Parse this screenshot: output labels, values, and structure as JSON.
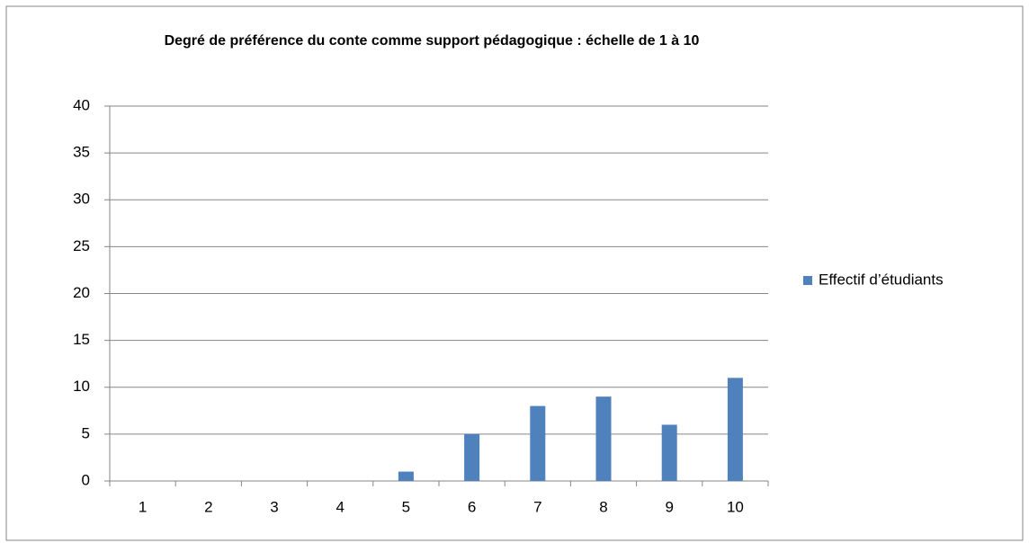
{
  "chart_data": {
    "type": "bar",
    "title": "Degré de préférence du conte comme support pédagogique : échelle de 1 à 10",
    "categories": [
      "1",
      "2",
      "3",
      "4",
      "5",
      "6",
      "7",
      "8",
      "9",
      "10"
    ],
    "series": [
      {
        "name": "Effectif d’étudiants",
        "color": "#4f81bd",
        "values": [
          0,
          0,
          0,
          0,
          1,
          5,
          8,
          9,
          6,
          11
        ]
      }
    ],
    "ylim": [
      0,
      40
    ],
    "yticks": [
      0,
      5,
      10,
      15,
      20,
      25,
      30,
      35,
      40
    ],
    "grid": true,
    "legend": "right"
  }
}
